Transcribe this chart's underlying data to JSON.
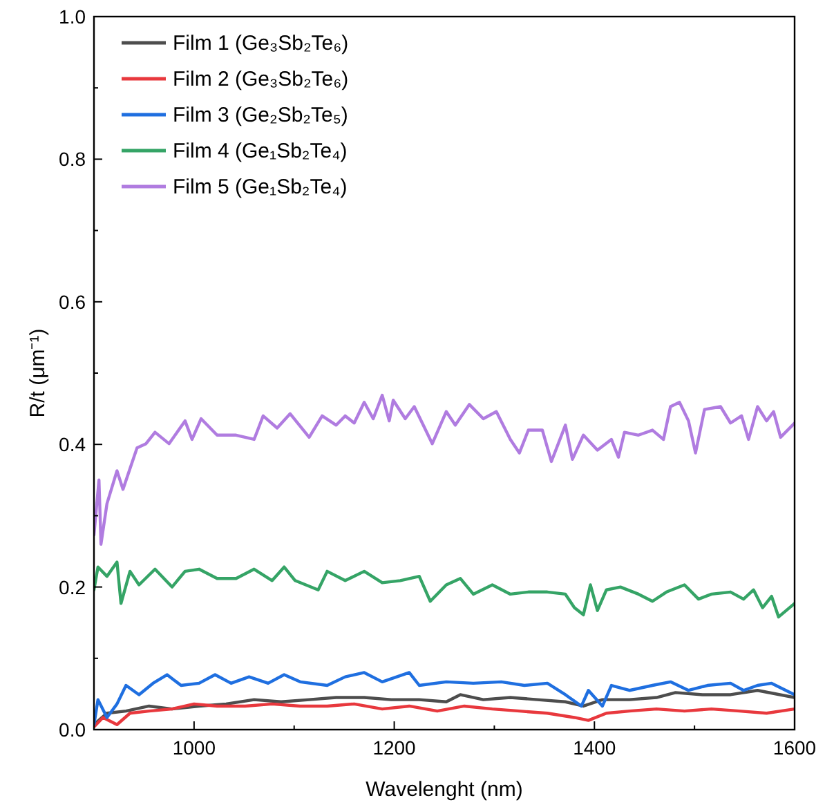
{
  "chart_data": {
    "type": "line",
    "xlabel": "Wavelenght (nm)",
    "ylabel": "R/t (μm⁻¹)",
    "xlim": [
      900,
      1600
    ],
    "ylim": [
      0,
      1
    ],
    "xticks": [
      1000,
      {
        "value": 1100,
        "label": null
      },
      1200,
      {
        "value": 1300,
        "label": null
      },
      1400,
      {
        "value": 1500,
        "label": null
      },
      1600
    ],
    "yticks": [
      {
        "value": 0,
        "label": "0.0"
      },
      {
        "value": 0.1,
        "label": null
      },
      {
        "value": 0.2,
        "label": "0.2"
      },
      {
        "value": 0.3,
        "label": null
      },
      {
        "value": 0.4,
        "label": "0.4"
      },
      {
        "value": 0.5,
        "label": null
      },
      {
        "value": 0.6,
        "label": "0.6"
      },
      {
        "value": 0.7,
        "label": null
      },
      {
        "value": 0.8,
        "label": "0.8"
      },
      {
        "value": 0.9,
        "label": null
      },
      {
        "value": 1.0,
        "label": "1.0"
      }
    ],
    "grid": false,
    "legend": "top left",
    "marker": "none",
    "line_style": "solid",
    "series": [
      {
        "name": "Film 1 (Ge₃Sb₂Te₆)",
        "color": "#4d4d4d",
        "x": [
          900,
          913,
          932,
          955,
          978,
          1005,
          1032,
          1060,
          1087,
          1115,
          1142,
          1170,
          1197,
          1225,
          1252,
          1266,
          1289,
          1316,
          1343,
          1371,
          1389,
          1408,
          1435,
          1462,
          1481,
          1508,
          1536,
          1563,
          1600
        ],
        "values": [
          0.007,
          0.023,
          0.026,
          0.033,
          0.029,
          0.033,
          0.036,
          0.042,
          0.039,
          0.042,
          0.045,
          0.045,
          0.042,
          0.042,
          0.039,
          0.049,
          0.042,
          0.045,
          0.042,
          0.039,
          0.033,
          0.042,
          0.042,
          0.045,
          0.052,
          0.049,
          0.049,
          0.055,
          0.045
        ]
      },
      {
        "name": "Film 2 (Ge₃Sb₂Te₆)",
        "color": "#e8383d",
        "x": [
          900,
          909,
          923,
          936,
          955,
          978,
          1000,
          1023,
          1051,
          1078,
          1106,
          1133,
          1160,
          1188,
          1215,
          1243,
          1270,
          1298,
          1325,
          1353,
          1380,
          1394,
          1412,
          1435,
          1462,
          1490,
          1517,
          1545,
          1572,
          1600
        ],
        "values": [
          0.004,
          0.017,
          0.007,
          0.023,
          0.026,
          0.029,
          0.036,
          0.033,
          0.033,
          0.036,
          0.033,
          0.033,
          0.036,
          0.029,
          0.033,
          0.026,
          0.033,
          0.029,
          0.026,
          0.023,
          0.017,
          0.013,
          0.023,
          0.026,
          0.029,
          0.026,
          0.029,
          0.026,
          0.023,
          0.029
        ]
      },
      {
        "name": "Film 3 (Ge₂Sb₂Te₅)",
        "color": "#1f6fe0",
        "x": [
          900,
          904,
          913,
          923,
          932,
          945,
          959,
          973,
          987,
          1005,
          1021,
          1037,
          1055,
          1074,
          1090,
          1106,
          1133,
          1151,
          1170,
          1188,
          1215,
          1225,
          1252,
          1279,
          1307,
          1330,
          1353,
          1371,
          1387,
          1394,
          1408,
          1417,
          1435,
          1458,
          1476,
          1494,
          1513,
          1536,
          1549,
          1563,
          1577,
          1600
        ],
        "values": [
          0.007,
          0.042,
          0.017,
          0.036,
          0.062,
          0.049,
          0.065,
          0.077,
          0.062,
          0.065,
          0.077,
          0.065,
          0.074,
          0.065,
          0.077,
          0.067,
          0.062,
          0.074,
          0.08,
          0.067,
          0.08,
          0.062,
          0.067,
          0.065,
          0.067,
          0.062,
          0.065,
          0.049,
          0.033,
          0.055,
          0.033,
          0.062,
          0.055,
          0.062,
          0.067,
          0.055,
          0.062,
          0.065,
          0.055,
          0.062,
          0.065,
          0.049
        ]
      },
      {
        "name": "Film 4 (Ge₁Sb₂Te₄)",
        "color": "#35a466",
        "x": [
          900,
          904,
          913,
          923,
          927,
          936,
          945,
          961,
          978,
          991,
          1005,
          1023,
          1042,
          1060,
          1078,
          1090,
          1101,
          1124,
          1133,
          1151,
          1170,
          1188,
          1206,
          1225,
          1236,
          1252,
          1266,
          1279,
          1298,
          1316,
          1334,
          1353,
          1371,
          1380,
          1389,
          1396,
          1403,
          1412,
          1426,
          1444,
          1458,
          1472,
          1490,
          1504,
          1517,
          1536,
          1549,
          1559,
          1568,
          1577,
          1584,
          1600
        ],
        "values": [
          0.196,
          0.228,
          0.215,
          0.235,
          0.177,
          0.222,
          0.203,
          0.225,
          0.2,
          0.222,
          0.225,
          0.212,
          0.212,
          0.225,
          0.209,
          0.228,
          0.209,
          0.196,
          0.222,
          0.209,
          0.222,
          0.206,
          0.209,
          0.215,
          0.18,
          0.203,
          0.212,
          0.19,
          0.203,
          0.19,
          0.193,
          0.193,
          0.19,
          0.171,
          0.161,
          0.203,
          0.167,
          0.196,
          0.2,
          0.19,
          0.18,
          0.193,
          0.203,
          0.183,
          0.19,
          0.193,
          0.183,
          0.196,
          0.171,
          0.187,
          0.158,
          0.177
        ]
      },
      {
        "name": "Film 5 (Ge₁Sb₂Te₄)",
        "color": "#b07ce0",
        "x": [
          900,
          905,
          907,
          913,
          923,
          929,
          936,
          943,
          952,
          961,
          975,
          991,
          998,
          1007,
          1023,
          1042,
          1060,
          1069,
          1083,
          1096,
          1115,
          1128,
          1142,
          1151,
          1160,
          1170,
          1179,
          1188,
          1195,
          1199,
          1211,
          1220,
          1229,
          1238,
          1252,
          1261,
          1275,
          1289,
          1302,
          1316,
          1325,
          1334,
          1348,
          1357,
          1371,
          1378,
          1389,
          1403,
          1417,
          1424,
          1430,
          1444,
          1458,
          1469,
          1476,
          1485,
          1494,
          1501,
          1510,
          1526,
          1536,
          1547,
          1554,
          1563,
          1572,
          1579,
          1586,
          1600
        ],
        "values": [
          0.273,
          0.35,
          0.26,
          0.317,
          0.363,
          0.337,
          0.366,
          0.395,
          0.401,
          0.417,
          0.401,
          0.433,
          0.407,
          0.436,
          0.413,
          0.413,
          0.407,
          0.44,
          0.423,
          0.443,
          0.41,
          0.44,
          0.427,
          0.44,
          0.43,
          0.459,
          0.436,
          0.469,
          0.433,
          0.462,
          0.436,
          0.453,
          0.427,
          0.401,
          0.446,
          0.427,
          0.456,
          0.436,
          0.446,
          0.407,
          0.388,
          0.42,
          0.42,
          0.376,
          0.427,
          0.379,
          0.413,
          0.392,
          0.407,
          0.382,
          0.417,
          0.413,
          0.42,
          0.407,
          0.453,
          0.459,
          0.433,
          0.388,
          0.449,
          0.453,
          0.43,
          0.44,
          0.407,
          0.453,
          0.433,
          0.446,
          0.41,
          0.43
        ]
      }
    ]
  }
}
